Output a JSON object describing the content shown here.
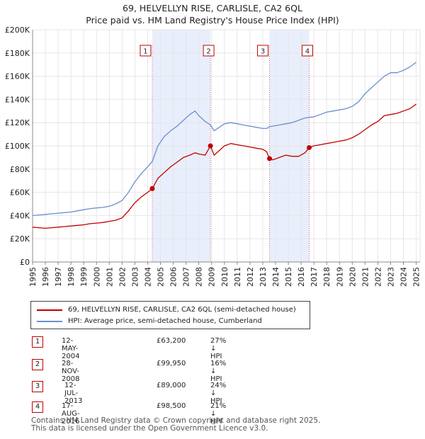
{
  "title": {
    "line1": "69, HELVELLYN RISE, CARLISLE, CA2 6QL",
    "line2": "Price paid vs. HM Land Registry's House Price Index (HPI)"
  },
  "chart_data": {
    "type": "line",
    "xlim": [
      1995,
      2025.3
    ],
    "ylim": [
      0,
      200000
    ],
    "x_ticks": [
      "1995",
      "1996",
      "1997",
      "1998",
      "1999",
      "2000",
      "2001",
      "2002",
      "2003",
      "2004",
      "2005",
      "2006",
      "2007",
      "2008",
      "2009",
      "2010",
      "2011",
      "2012",
      "2013",
      "2014",
      "2015",
      "2016",
      "2017",
      "2018",
      "2019",
      "2020",
      "2021",
      "2022",
      "2023",
      "2024",
      "2025"
    ],
    "y_ticks": [
      {
        "value": 0,
        "label": "£0"
      },
      {
        "value": 20000,
        "label": "£20K"
      },
      {
        "value": 40000,
        "label": "£40K"
      },
      {
        "value": 60000,
        "label": "£60K"
      },
      {
        "value": 80000,
        "label": "£80K"
      },
      {
        "value": 100000,
        "label": "£100K"
      },
      {
        "value": 120000,
        "label": "£120K"
      },
      {
        "value": 140000,
        "label": "£140K"
      },
      {
        "value": 160000,
        "label": "£160K"
      },
      {
        "value": 180000,
        "label": "£180K"
      },
      {
        "value": 200000,
        "label": "£200K"
      }
    ],
    "series": [
      {
        "name": "69, HELVELLYN RISE, CARLISLE, CA2 6QL (semi-detached house)",
        "color": "#c00000",
        "x": [
          1995.0,
          1995.5,
          1996.0,
          1996.5,
          1997.0,
          1997.5,
          1998.0,
          1998.5,
          1999.0,
          1999.5,
          2000.0,
          2000.5,
          2001.0,
          2001.5,
          2002.0,
          2002.5,
          2003.0,
          2003.5,
          2004.0,
          2004.36,
          2004.8,
          2005.3,
          2005.8,
          2006.3,
          2006.8,
          2007.3,
          2007.7,
          2008.0,
          2008.5,
          2008.91,
          2009.2,
          2009.6,
          2010.0,
          2010.5,
          2011.0,
          2011.5,
          2012.0,
          2012.5,
          2013.0,
          2013.3,
          2013.53,
          2013.8,
          2014.3,
          2014.8,
          2015.3,
          2015.8,
          2016.3,
          2016.63,
          2017.0,
          2017.5,
          2018.0,
          2018.5,
          2019.0,
          2019.5,
          2020.0,
          2020.5,
          2021.0,
          2021.5,
          2022.0,
          2022.5,
          2023.0,
          2023.5,
          2024.0,
          2024.5,
          2025.0
        ],
        "y": [
          30000,
          29500,
          29000,
          29500,
          30000,
          30500,
          31000,
          31500,
          32000,
          33000,
          33500,
          34000,
          35000,
          36000,
          38000,
          44000,
          51000,
          56000,
          60000,
          63200,
          72000,
          77000,
          82000,
          86000,
          90000,
          92000,
          94000,
          93000,
          92000,
          99950,
          92000,
          96000,
          100000,
          102000,
          101000,
          100000,
          99000,
          98000,
          97000,
          95000,
          89000,
          88000,
          90000,
          92000,
          91000,
          91000,
          94000,
          98500,
          100000,
          101000,
          102000,
          103000,
          104000,
          105000,
          107000,
          110000,
          114000,
          118000,
          121000,
          126000,
          127000,
          128000,
          130000,
          132000,
          136000
        ]
      },
      {
        "name": "HPI: Average price, semi-detached house, Cumberland",
        "color": "#6b8fcf",
        "x": [
          1995.0,
          1995.5,
          1996.0,
          1996.5,
          1997.0,
          1997.5,
          1998.0,
          1998.5,
          1999.0,
          1999.5,
          2000.0,
          2000.5,
          2001.0,
          2001.5,
          2002.0,
          2002.5,
          2003.0,
          2003.5,
          2004.0,
          2004.36,
          2004.8,
          2005.3,
          2005.8,
          2006.3,
          2006.8,
          2007.3,
          2007.7,
          2008.0,
          2008.5,
          2008.91,
          2009.2,
          2009.6,
          2010.0,
          2010.5,
          2011.0,
          2011.5,
          2012.0,
          2012.5,
          2013.0,
          2013.3,
          2013.53,
          2013.8,
          2014.3,
          2014.8,
          2015.3,
          2015.8,
          2016.3,
          2016.63,
          2017.0,
          2017.5,
          2018.0,
          2018.5,
          2019.0,
          2019.5,
          2020.0,
          2020.5,
          2021.0,
          2021.5,
          2022.0,
          2022.5,
          2023.0,
          2023.5,
          2024.0,
          2024.5,
          2025.0
        ],
        "y": [
          40000,
          40500,
          41000,
          41500,
          42000,
          42500,
          43000,
          44000,
          45000,
          46000,
          46500,
          47000,
          48000,
          50000,
          53000,
          60000,
          69000,
          76000,
          82000,
          86500,
          100000,
          108000,
          113000,
          117000,
          122000,
          127000,
          130000,
          126000,
          121000,
          118000,
          113000,
          116000,
          119000,
          120000,
          119000,
          118000,
          117000,
          116000,
          115000,
          115000,
          116500,
          117000,
          118000,
          119000,
          120000,
          122000,
          124000,
          124500,
          125000,
          127000,
          129000,
          130000,
          131000,
          132000,
          134000,
          138000,
          145000,
          150000,
          155000,
          160000,
          163000,
          163000,
          165000,
          168000,
          172000
        ]
      }
    ],
    "transactions": [
      {
        "num": "1",
        "x": 2004.36,
        "price": 63200,
        "date": "12-MAY-2004",
        "price_label": "£63,200",
        "hpi_label": "27% ↓ HPI"
      },
      {
        "num": "2",
        "x": 2008.91,
        "price": 99950,
        "date": "28-NOV-2008",
        "price_label": "£99,950",
        "hpi_label": "16% ↓ HPI"
      },
      {
        "num": "3",
        "x": 2013.53,
        "price": 89000,
        "date": "12-JUL-2013",
        "price_label": "£89,000",
        "hpi_label": "24% ↓ HPI"
      },
      {
        "num": "4",
        "x": 2016.63,
        "price": 98500,
        "date": "17-AUG-2016",
        "price_label": "£98,500",
        "hpi_label": "21% ↓ HPI"
      }
    ],
    "colors": {
      "shade": "#e8eefb",
      "vline": "#e06070",
      "grid": "#e6e6e6",
      "axis": "#888888"
    }
  },
  "legend": {
    "series1": "69, HELVELLYN RISE, CARLISLE, CA2 6QL (semi-detached house)",
    "series2": "HPI: Average price, semi-detached house, Cumberland"
  },
  "footer": {
    "line1": "Contains HM Land Registry data © Crown copyright and database right 2025.",
    "line2": "This data is licensed under the Open Government Licence v3.0."
  }
}
